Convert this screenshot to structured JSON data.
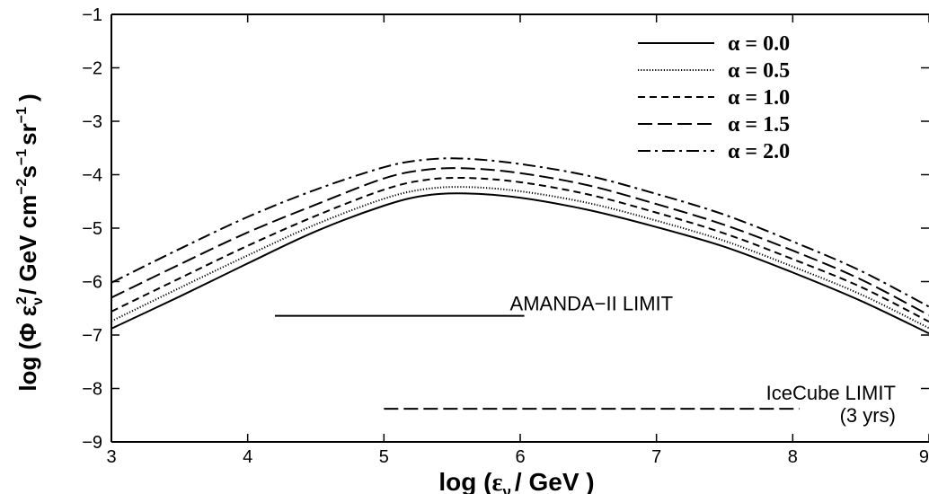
{
  "chart_data": {
    "type": "line",
    "xlabel_main": "log (",
    "xlabel_eps": "ε",
    "xlabel_sub": "ν",
    "xlabel_tail": "/ GeV )",
    "ylabel_main": "log (Φ ε",
    "ylabel_sub": "ν",
    "ylabel_sup1": "2",
    "ylabel_mid": "/ GeV cm",
    "ylabel_sup2": "−2",
    "ylabel_s": "s",
    "ylabel_sup3": "−1",
    "ylabel_sr": "sr",
    "ylabel_sup4": "−1",
    "ylabel_close": ")",
    "xlim": [
      3,
      9
    ],
    "ylim": [
      -9,
      -1
    ],
    "xticks": [
      3,
      4,
      5,
      6,
      7,
      8,
      9
    ],
    "xtick_labels": [
      "3",
      "4",
      "5",
      "6",
      "7",
      "8",
      "9"
    ],
    "yticks": [
      -9,
      -8,
      -7,
      -6,
      -5,
      -4,
      -3,
      -2,
      -1
    ],
    "ytick_labels": [
      "−9",
      "−8",
      "−7",
      "−6",
      "−5",
      "−4",
      "−3",
      "−2",
      "−1"
    ],
    "legend_position": "top-right",
    "series": [
      {
        "name": "α = 0.0",
        "dash": "solid",
        "x": [
          3.0,
          3.5,
          4.0,
          4.5,
          5.0,
          5.3,
          5.6,
          6.0,
          6.5,
          7.0,
          7.5,
          8.0,
          8.5,
          9.0
        ],
        "y": [
          -6.88,
          -6.28,
          -5.66,
          -5.06,
          -4.58,
          -4.39,
          -4.35,
          -4.43,
          -4.66,
          -4.98,
          -5.35,
          -5.83,
          -6.36,
          -6.97
        ]
      },
      {
        "name": "α = 0.5",
        "dash": "dotted",
        "x": [
          3.0,
          3.5,
          4.0,
          4.5,
          5.0,
          5.3,
          5.6,
          6.0,
          6.5,
          7.0,
          7.5,
          8.0,
          8.5,
          9.0
        ],
        "y": [
          -6.74,
          -6.12,
          -5.51,
          -4.93,
          -4.45,
          -4.27,
          -4.23,
          -4.31,
          -4.53,
          -4.86,
          -5.24,
          -5.72,
          -6.24,
          -6.87
        ]
      },
      {
        "name": "α = 1.0",
        "dash": "short-dash",
        "x": [
          3.0,
          3.5,
          4.0,
          4.5,
          5.0,
          5.3,
          5.6,
          6.0,
          6.5,
          7.0,
          7.5,
          8.0,
          8.5,
          9.0
        ],
        "y": [
          -6.56,
          -5.94,
          -5.33,
          -4.77,
          -4.28,
          -4.1,
          -4.06,
          -4.14,
          -4.37,
          -4.71,
          -5.1,
          -5.58,
          -6.1,
          -6.75
        ]
      },
      {
        "name": "α = 1.5",
        "dash": "long-dash",
        "x": [
          3.0,
          3.5,
          4.0,
          4.5,
          5.0,
          5.3,
          5.6,
          6.0,
          6.5,
          7.0,
          7.5,
          8.0,
          8.5,
          9.0
        ],
        "y": [
          -6.3,
          -5.68,
          -5.08,
          -4.56,
          -4.07,
          -3.91,
          -3.88,
          -3.97,
          -4.2,
          -4.55,
          -4.94,
          -5.42,
          -5.96,
          -6.63
        ]
      },
      {
        "name": "α = 2.0",
        "dash": "dash-dot",
        "x": [
          3.0,
          3.5,
          4.0,
          4.5,
          5.0,
          5.3,
          5.6,
          6.0,
          6.5,
          7.0,
          7.5,
          8.0,
          8.5,
          9.0
        ],
        "y": [
          -6.02,
          -5.39,
          -4.79,
          -4.28,
          -3.86,
          -3.72,
          -3.7,
          -3.8,
          -4.02,
          -4.36,
          -4.75,
          -5.25,
          -5.8,
          -6.47
        ]
      }
    ],
    "limits": [
      {
        "label": "AMANDA−II LIMIT",
        "sublabel": "",
        "dash": "solid",
        "x": [
          4.2,
          6.03
        ],
        "y": -6.64
      },
      {
        "label": "IceCube LIMIT",
        "sublabel": "(3 yrs)",
        "dash": "long-dash",
        "x": [
          5.0,
          8.05
        ],
        "y": -8.38
      }
    ]
  }
}
